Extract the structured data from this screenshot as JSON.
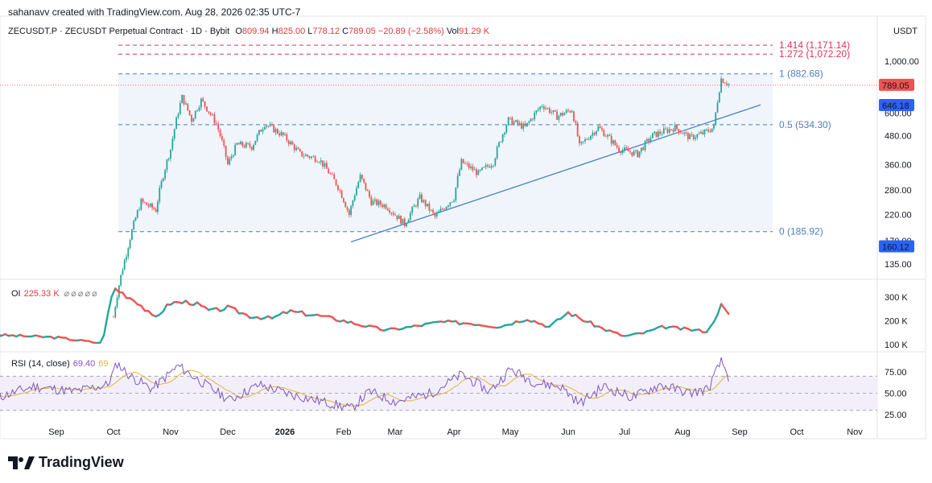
{
  "header": {
    "credit": "sahanavv created with TradingView.com, Aug 28, 2026 02:35 UTC-7"
  },
  "symbol": {
    "title": "ZECUSDT.P · ZECUSDT Perpetual Contract · 1D · Bybit",
    "o_label": "O",
    "o": "809.94",
    "h_label": "H",
    "h": "825.00",
    "l_label": "L",
    "l": "778.12",
    "c_label": "C",
    "c": "789.05",
    "change": "−20.89 (−2.58%)",
    "vol_label": "Vol",
    "vol": "91.29 K"
  },
  "currency": "USDT",
  "colors": {
    "up": "#26a69a",
    "down": "#ef5350",
    "fib_red": "#e0305a",
    "fib_blue": "#4a7fc1",
    "rsi": "#7e57c2",
    "rsi_ma": "#e0b53f"
  },
  "chart_data": [
    {
      "type": "candlestick",
      "title": "ZECUSDT.P · ZECUSDT Perpetual Contract · 1D · Bybit",
      "scale": "log",
      "y_ticks": [
        "1,000.00",
        "600.00",
        "480.00",
        "360.00",
        "280.00",
        "220.00",
        "170.00",
        "135.00"
      ],
      "y_tick_values": [
        1000,
        600,
        480,
        360,
        280,
        220,
        170,
        135
      ],
      "x_ticks": [
        "Sep",
        "Oct",
        "Nov",
        "Dec",
        "2026",
        "Feb",
        "Mar",
        "Apr",
        "May",
        "Jun",
        "Jul",
        "Aug",
        "Sep",
        "Oct",
        "Nov"
      ],
      "last_price": {
        "label": "789.05",
        "value": 789.05
      },
      "price_markers": [
        {
          "label": "646.18",
          "value": 646.18
        },
        {
          "label": "160.12",
          "value": 160.12
        }
      ],
      "fib_levels": [
        {
          "label": "1.414 (1,171.14)",
          "value": 1171.14
        },
        {
          "label": "1.272 (1,072.20)",
          "value": 1072.2
        },
        {
          "label": "1 (882.68)",
          "value": 882.68
        },
        {
          "label": "0.5 (534.30)",
          "value": 534.3
        },
        {
          "label": "0 (185.92)",
          "value": 185.92
        }
      ],
      "trendline": [
        {
          "x": "2026-02-05",
          "y": 168
        },
        {
          "x": "2026-09-12",
          "y": 650
        }
      ],
      "series_keypoints": [
        {
          "x": "2025-10-01",
          "y": 80
        },
        {
          "x": "2025-10-08",
          "y": 150
        },
        {
          "x": "2025-10-16",
          "y": 250
        },
        {
          "x": "2025-10-24",
          "y": 230
        },
        {
          "x": "2025-11-01",
          "y": 420
        },
        {
          "x": "2025-11-07",
          "y": 700
        },
        {
          "x": "2025-11-12",
          "y": 560
        },
        {
          "x": "2025-11-17",
          "y": 680
        },
        {
          "x": "2025-11-25",
          "y": 540
        },
        {
          "x": "2025-12-01",
          "y": 360
        },
        {
          "x": "2025-12-06",
          "y": 440
        },
        {
          "x": "2025-12-14",
          "y": 430
        },
        {
          "x": "2025-12-21",
          "y": 540
        },
        {
          "x": "2025-12-31",
          "y": 480
        },
        {
          "x": "2026-01-09",
          "y": 400
        },
        {
          "x": "2026-01-19",
          "y": 380
        },
        {
          "x": "2026-01-29",
          "y": 290
        },
        {
          "x": "2026-02-04",
          "y": 220
        },
        {
          "x": "2026-02-10",
          "y": 320
        },
        {
          "x": "2026-02-16",
          "y": 250
        },
        {
          "x": "2026-02-24",
          "y": 240
        },
        {
          "x": "2026-03-06",
          "y": 200
        },
        {
          "x": "2026-03-14",
          "y": 260
        },
        {
          "x": "2026-03-22",
          "y": 215
        },
        {
          "x": "2026-04-01",
          "y": 260
        },
        {
          "x": "2026-04-05",
          "y": 370
        },
        {
          "x": "2026-04-14",
          "y": 330
        },
        {
          "x": "2026-04-22",
          "y": 370
        },
        {
          "x": "2026-04-30",
          "y": 560
        },
        {
          "x": "2026-05-09",
          "y": 520
        },
        {
          "x": "2026-05-18",
          "y": 650
        },
        {
          "x": "2026-05-26",
          "y": 580
        },
        {
          "x": "2026-06-03",
          "y": 620
        },
        {
          "x": "2026-06-07",
          "y": 430
        },
        {
          "x": "2026-06-17",
          "y": 520
        },
        {
          "x": "2026-06-28",
          "y": 420
        },
        {
          "x": "2026-07-08",
          "y": 400
        },
        {
          "x": "2026-07-16",
          "y": 480
        },
        {
          "x": "2026-07-28",
          "y": 520
        },
        {
          "x": "2026-08-05",
          "y": 470
        },
        {
          "x": "2026-08-12",
          "y": 490
        },
        {
          "x": "2026-08-18",
          "y": 520
        },
        {
          "x": "2026-08-22",
          "y": 840
        },
        {
          "x": "2026-08-26",
          "y": 800
        }
      ]
    },
    {
      "type": "line",
      "title": "OI",
      "last_value": "225.33 K",
      "y_ticks": [
        "300 K",
        "200 K",
        "100 K"
      ],
      "y_tick_values": [
        300,
        200,
        100
      ],
      "series_keypoints": [
        {
          "x": "2025-08-01",
          "y": 140
        },
        {
          "x": "2025-09-01",
          "y": 130
        },
        {
          "x": "2025-09-25",
          "y": 105
        },
        {
          "x": "2025-10-01",
          "y": 340
        },
        {
          "x": "2025-10-14",
          "y": 280
        },
        {
          "x": "2025-10-23",
          "y": 210
        },
        {
          "x": "2025-11-01",
          "y": 275
        },
        {
          "x": "2025-11-12",
          "y": 280
        },
        {
          "x": "2025-11-22",
          "y": 240
        },
        {
          "x": "2025-12-01",
          "y": 255
        },
        {
          "x": "2025-12-13",
          "y": 220
        },
        {
          "x": "2025-12-25",
          "y": 210
        },
        {
          "x": "2026-01-03",
          "y": 240
        },
        {
          "x": "2026-01-20",
          "y": 220
        },
        {
          "x": "2026-02-01",
          "y": 200
        },
        {
          "x": "2026-02-12",
          "y": 180
        },
        {
          "x": "2026-02-24",
          "y": 160
        },
        {
          "x": "2026-03-10",
          "y": 175
        },
        {
          "x": "2026-03-25",
          "y": 195
        },
        {
          "x": "2026-04-10",
          "y": 190
        },
        {
          "x": "2026-04-25",
          "y": 175
        },
        {
          "x": "2026-05-10",
          "y": 210
        },
        {
          "x": "2026-05-22",
          "y": 175
        },
        {
          "x": "2026-06-01",
          "y": 235
        },
        {
          "x": "2026-06-10",
          "y": 200
        },
        {
          "x": "2026-06-20",
          "y": 165
        },
        {
          "x": "2026-07-01",
          "y": 135
        },
        {
          "x": "2026-07-12",
          "y": 150
        },
        {
          "x": "2026-07-22",
          "y": 175
        },
        {
          "x": "2026-08-02",
          "y": 165
        },
        {
          "x": "2026-08-15",
          "y": 155
        },
        {
          "x": "2026-08-22",
          "y": 265
        },
        {
          "x": "2026-08-26",
          "y": 225
        }
      ]
    },
    {
      "type": "line",
      "title": "RSI (14, close)",
      "last_value": "69.40",
      "ma_value": "69",
      "y_ticks": [
        "75.00",
        "50.00",
        "25.00"
      ],
      "y_tick_values": [
        75,
        50,
        25
      ],
      "band": [
        30,
        70
      ],
      "series_keypoints": [
        {
          "x": "2025-08-01",
          "y": 45
        },
        {
          "x": "2025-08-20",
          "y": 58
        },
        {
          "x": "2025-09-10",
          "y": 52
        },
        {
          "x": "2025-09-28",
          "y": 60
        },
        {
          "x": "2025-10-03",
          "y": 85
        },
        {
          "x": "2025-10-10",
          "y": 70
        },
        {
          "x": "2025-10-22",
          "y": 55
        },
        {
          "x": "2025-11-05",
          "y": 82
        },
        {
          "x": "2025-11-18",
          "y": 62
        },
        {
          "x": "2025-12-02",
          "y": 42
        },
        {
          "x": "2025-12-18",
          "y": 60
        },
        {
          "x": "2026-01-05",
          "y": 48
        },
        {
          "x": "2026-01-25",
          "y": 38
        },
        {
          "x": "2026-02-05",
          "y": 32
        },
        {
          "x": "2026-02-15",
          "y": 52
        },
        {
          "x": "2026-03-01",
          "y": 40
        },
        {
          "x": "2026-03-20",
          "y": 50
        },
        {
          "x": "2026-04-05",
          "y": 72
        },
        {
          "x": "2026-04-20",
          "y": 52
        },
        {
          "x": "2026-05-01",
          "y": 78
        },
        {
          "x": "2026-05-15",
          "y": 62
        },
        {
          "x": "2026-05-28",
          "y": 58
        },
        {
          "x": "2026-06-07",
          "y": 38
        },
        {
          "x": "2026-06-20",
          "y": 58
        },
        {
          "x": "2026-07-05",
          "y": 45
        },
        {
          "x": "2026-07-20",
          "y": 60
        },
        {
          "x": "2026-08-05",
          "y": 50
        },
        {
          "x": "2026-08-15",
          "y": 55
        },
        {
          "x": "2026-08-22",
          "y": 88
        },
        {
          "x": "2026-08-26",
          "y": 69.4
        }
      ]
    }
  ],
  "footer": {
    "brand": "TradingView"
  }
}
